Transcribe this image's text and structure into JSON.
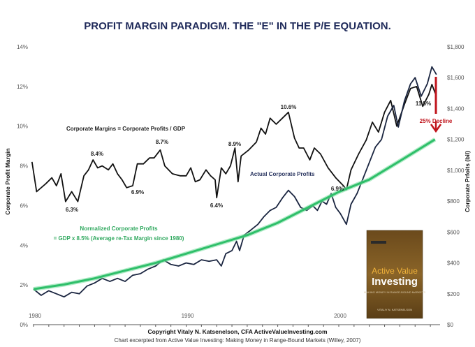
{
  "chart_data": {
    "type": "line",
    "title": "PROFIT MARGIN PARADIGM.  THE \"E\" IN THE P/E EQUATION.",
    "ylabel_left": "Corporate Profit Margin",
    "ylabel_right": "Corporate Prfoits (bil)",
    "ylim_left": [
      0,
      14
    ],
    "ylim_right": [
      0,
      1800
    ],
    "xlim": [
      1980,
      2006.5
    ],
    "left_ticks": [
      "0%",
      "2%",
      "4%",
      "6%",
      "8%",
      "10%",
      "12%",
      "14%"
    ],
    "left_tick_values": [
      0,
      2,
      4,
      6,
      8,
      10,
      12,
      14
    ],
    "right_ticks": [
      "$0",
      "$200",
      "$400",
      "$600",
      "$800",
      "$1,000",
      "$1,200",
      "$1,400",
      "$1,600",
      "$1,800"
    ],
    "right_tick_values": [
      0,
      200,
      400,
      600,
      800,
      1000,
      1200,
      1400,
      1600,
      1800
    ],
    "x_ticks": [
      "1980",
      "1990",
      "2000"
    ],
    "x_tick_values": [
      1980,
      1990,
      2000
    ],
    "grid": false,
    "series": [
      {
        "name": "Corporate Margins",
        "axis": "left",
        "color": "#111111",
        "points": [
          [
            1979.9,
            8.2
          ],
          [
            1980.2,
            6.7
          ],
          [
            1980.8,
            7.1
          ],
          [
            1981.2,
            7.4
          ],
          [
            1981.5,
            7.0
          ],
          [
            1981.8,
            7.6
          ],
          [
            1982.1,
            6.2
          ],
          [
            1982.5,
            6.7
          ],
          [
            1982.9,
            6.2
          ],
          [
            1983.3,
            7.5
          ],
          [
            1983.6,
            7.8
          ],
          [
            1983.9,
            8.3
          ],
          [
            1984.2,
            7.9
          ],
          [
            1984.5,
            8.0
          ],
          [
            1984.9,
            7.8
          ],
          [
            1985.2,
            8.1
          ],
          [
            1985.5,
            7.6
          ],
          [
            1985.8,
            7.3
          ],
          [
            1986.1,
            6.9
          ],
          [
            1986.5,
            7.0
          ],
          [
            1986.8,
            8.1
          ],
          [
            1987.2,
            8.1
          ],
          [
            1987.6,
            8.4
          ],
          [
            1987.9,
            8.4
          ],
          [
            1988.3,
            8.8
          ],
          [
            1988.6,
            8.0
          ],
          [
            1989.1,
            7.6
          ],
          [
            1989.6,
            7.5
          ],
          [
            1990.0,
            7.5
          ],
          [
            1990.3,
            7.9
          ],
          [
            1990.6,
            7.2
          ],
          [
            1990.9,
            7.3
          ],
          [
            1991.3,
            7.8
          ],
          [
            1991.6,
            7.5
          ],
          [
            1991.9,
            7.3
          ],
          [
            1992.0,
            6.4
          ],
          [
            1992.3,
            7.9
          ],
          [
            1992.6,
            7.6
          ],
          [
            1992.9,
            8.0
          ],
          [
            1993.2,
            8.9
          ],
          [
            1993.4,
            7.2
          ],
          [
            1993.6,
            8.5
          ],
          [
            1994.1,
            8.8
          ],
          [
            1994.6,
            9.2
          ],
          [
            1994.9,
            9.9
          ],
          [
            1995.2,
            9.6
          ],
          [
            1995.5,
            10.4
          ],
          [
            1995.9,
            10.1
          ],
          [
            1996.3,
            10.4
          ],
          [
            1996.7,
            10.7
          ],
          [
            1997.1,
            9.4
          ],
          [
            1997.4,
            8.9
          ],
          [
            1997.7,
            8.9
          ],
          [
            1998.1,
            8.3
          ],
          [
            1998.4,
            8.9
          ],
          [
            1998.8,
            8.6
          ],
          [
            1999.3,
            7.9
          ],
          [
            1999.8,
            7.4
          ],
          [
            2000.3,
            7.0
          ],
          [
            2000.5,
            6.8
          ],
          [
            2000.8,
            7.8
          ],
          [
            2001.3,
            8.6
          ],
          [
            2001.8,
            9.3
          ],
          [
            2002.2,
            10.2
          ],
          [
            2002.6,
            9.7
          ],
          [
            2003.0,
            10.7
          ],
          [
            2003.4,
            11.3
          ],
          [
            2003.8,
            10.0
          ],
          [
            2004.3,
            11.1
          ],
          [
            2004.7,
            11.9
          ],
          [
            2005.1,
            12.0
          ],
          [
            2005.5,
            11.0
          ],
          [
            2005.9,
            11.6
          ],
          [
            2006.1,
            12.1
          ],
          [
            2006.4,
            11.5
          ]
        ]
      },
      {
        "name": "Actual Corporate Profits",
        "axis": "right",
        "color": "#1a2540",
        "points": [
          [
            1980,
            230
          ],
          [
            1980.5,
            190
          ],
          [
            1981,
            220
          ],
          [
            1981.5,
            200
          ],
          [
            1982,
            180
          ],
          [
            1982.5,
            210
          ],
          [
            1983,
            200
          ],
          [
            1983.5,
            250
          ],
          [
            1984,
            270
          ],
          [
            1984.5,
            300
          ],
          [
            1985,
            280
          ],
          [
            1985.5,
            300
          ],
          [
            1986,
            280
          ],
          [
            1986.5,
            320
          ],
          [
            1987,
            330
          ],
          [
            1987.5,
            360
          ],
          [
            1988,
            380
          ],
          [
            1988.5,
            420
          ],
          [
            1989,
            390
          ],
          [
            1989.5,
            380
          ],
          [
            1990,
            400
          ],
          [
            1990.5,
            390
          ],
          [
            1991,
            420
          ],
          [
            1991.5,
            410
          ],
          [
            1992,
            420
          ],
          [
            1992.3,
            380
          ],
          [
            1992.6,
            460
          ],
          [
            1993,
            480
          ],
          [
            1993.3,
            540
          ],
          [
            1993.5,
            480
          ],
          [
            1993.8,
            580
          ],
          [
            1994.2,
            610
          ],
          [
            1994.7,
            650
          ],
          [
            1995.1,
            700
          ],
          [
            1995.5,
            740
          ],
          [
            1995.9,
            760
          ],
          [
            1996.3,
            820
          ],
          [
            1996.7,
            870
          ],
          [
            1997.1,
            830
          ],
          [
            1997.5,
            760
          ],
          [
            1997.9,
            740
          ],
          [
            1998.3,
            770
          ],
          [
            1998.6,
            740
          ],
          [
            1998.9,
            800
          ],
          [
            1999.2,
            780
          ],
          [
            1999.5,
            850
          ],
          [
            1999.8,
            760
          ],
          [
            2000.1,
            720
          ],
          [
            2000.5,
            650
          ],
          [
            2000.8,
            780
          ],
          [
            2001.2,
            850
          ],
          [
            2001.6,
            950
          ],
          [
            2002,
            1050
          ],
          [
            2002.4,
            1150
          ],
          [
            2002.8,
            1200
          ],
          [
            2003.2,
            1350
          ],
          [
            2003.6,
            1420
          ],
          [
            2003.9,
            1280
          ],
          [
            2004.3,
            1450
          ],
          [
            2004.7,
            1560
          ],
          [
            2005,
            1600
          ],
          [
            2005.4,
            1480
          ],
          [
            2005.8,
            1560
          ],
          [
            2006.1,
            1670
          ],
          [
            2006.4,
            1620
          ]
        ]
      },
      {
        "name": "Normalized Corporate Profits",
        "axis": "right",
        "color": "#2fbf6a",
        "points": [
          [
            1980,
            230
          ],
          [
            1982,
            260
          ],
          [
            1984,
            300
          ],
          [
            1986,
            350
          ],
          [
            1988,
            400
          ],
          [
            1990,
            460
          ],
          [
            1992,
            520
          ],
          [
            1994,
            580
          ],
          [
            1996,
            660
          ],
          [
            1998,
            760
          ],
          [
            2000,
            860
          ],
          [
            2002,
            940
          ],
          [
            2004,
            1060
          ],
          [
            2006.3,
            1200
          ]
        ]
      }
    ],
    "annotations": {
      "margins_formula": "Corporate Margins = Corporate Profits / GDP",
      "actual_profits": "Actual Corporate Profits",
      "normalized_line1": "Normalized Corporate Profits",
      "normalized_line2": "= GDP x 8.5% (Average re-Tax Margin since 1980)",
      "decline": "25% Decline",
      "point_labels": [
        "6.3%",
        "8.4%",
        "6.9%",
        "8.7%",
        "6.4%",
        "8.9%",
        "10.6%",
        "6.9%",
        "11.5%"
      ]
    },
    "footer": {
      "copyright": "Copyright Vitaly N. Katsenelson, CFA  ActiveValueInvesting.com",
      "source": "Chart excerpted from Active Value Investing: Making Money in Range-Bound Markets (Willey,  2007)"
    },
    "book": {
      "title1": "Active Value",
      "title2": "Investing",
      "subtitle": "MAKING MONEY IN RANGE-BOUND MARKETS",
      "author": "VITALIY N. KATSENELSON"
    },
    "colors": {
      "title": "#1f2a5a",
      "decline": "#c0141c",
      "normalized": "#2fbf6a",
      "profits": "#1a2540",
      "margins": "#111111"
    }
  }
}
